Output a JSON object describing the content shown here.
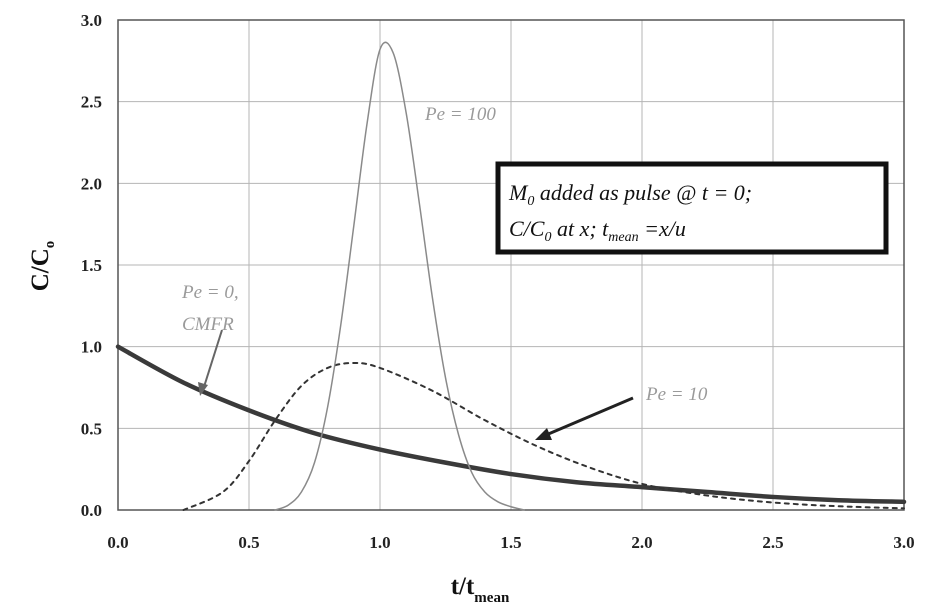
{
  "chart_data": {
    "type": "line",
    "xlabel": "t/t",
    "xlabel_sub": "mean",
    "ylabel": "C/C",
    "ylabel_sub": "o",
    "xlim": [
      0,
      3
    ],
    "ylim": [
      0,
      3
    ],
    "x_ticks": [
      "0.0",
      "0.5",
      "1.0",
      "1.5",
      "2.0",
      "2.5",
      "3.0"
    ],
    "y_ticks": [
      "0.0",
      "0.5",
      "1.0",
      "1.5",
      "2.0",
      "2.5",
      "3.0"
    ],
    "grid": true,
    "series": [
      {
        "name": "Pe = 0, CMFR",
        "style": "thick-solid",
        "x": [
          0,
          0.25,
          0.5,
          0.75,
          1.0,
          1.25,
          1.5,
          1.75,
          2.0,
          2.25,
          2.5,
          2.75,
          3.0
        ],
        "y": [
          1.0,
          0.78,
          0.61,
          0.47,
          0.37,
          0.29,
          0.22,
          0.17,
          0.14,
          0.11,
          0.08,
          0.06,
          0.05
        ]
      },
      {
        "name": "Pe = 10",
        "style": "dotted",
        "x": [
          0.25,
          0.4,
          0.5,
          0.6,
          0.7,
          0.8,
          0.9,
          1.0,
          1.2,
          1.4,
          1.6,
          1.8,
          2.0,
          2.2,
          2.4,
          2.6,
          2.8,
          3.0
        ],
        "y": [
          0.0,
          0.11,
          0.3,
          0.55,
          0.76,
          0.87,
          0.9,
          0.87,
          0.73,
          0.55,
          0.39,
          0.26,
          0.16,
          0.1,
          0.06,
          0.035,
          0.02,
          0.01
        ]
      },
      {
        "name": "Pe = 100",
        "style": "thin-solid",
        "x": [
          0.6,
          0.65,
          0.7,
          0.75,
          0.8,
          0.85,
          0.9,
          0.95,
          1.0,
          1.05,
          1.1,
          1.15,
          1.2,
          1.25,
          1.3,
          1.35,
          1.4,
          1.45,
          1.5,
          1.55
        ],
        "y": [
          0.0,
          0.03,
          0.11,
          0.29,
          0.63,
          1.13,
          1.74,
          2.36,
          2.82,
          2.8,
          2.43,
          1.88,
          1.3,
          0.81,
          0.46,
          0.23,
          0.11,
          0.05,
          0.02,
          0.0
        ]
      }
    ],
    "annotations": [
      {
        "text": "Pe = 100"
      },
      {
        "text": "Pe = 0,"
      },
      {
        "text": "CMFR"
      },
      {
        "text": "Pe = 10"
      }
    ],
    "textbox": {
      "line1": "M",
      "line1_sub": "0",
      "line1_rest": " added as pulse @ t = 0;",
      "line2": "C/C",
      "line2_sub": "0",
      "line2_mid": " at x; t",
      "line2_sub2": "mean",
      "line2_rest": " =x/u"
    }
  },
  "colors": {
    "background": "#ffffff",
    "grid": "#b5b5b5",
    "axes": "#555555",
    "cmfr": "#3a3a3a",
    "pe10": "#333333",
    "pe100": "#8a8a8a",
    "annotation": "#9a9a9a",
    "box_border": "#111111"
  }
}
